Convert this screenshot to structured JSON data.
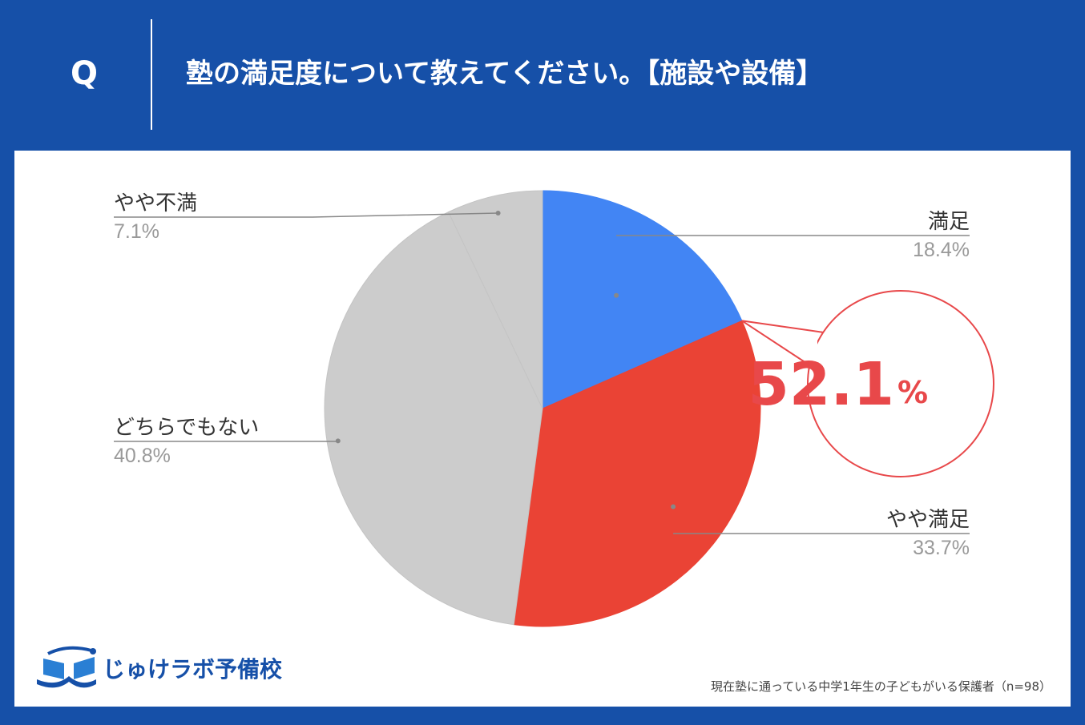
{
  "header": {
    "q_label": "Q",
    "question": "塾の満足度について教えてください。【施設や設備】"
  },
  "chart_data": {
    "type": "pie",
    "title": "",
    "slices": [
      {
        "label": "満足",
        "value": 18.4,
        "display": "18.4%",
        "color": "#4285f4",
        "label_side": "right"
      },
      {
        "label": "やや満足",
        "value": 33.7,
        "display": "33.7%",
        "color": "#ea4335",
        "label_side": "right"
      },
      {
        "label": "どちらでもない",
        "value": 40.8,
        "display": "40.8%",
        "color": "#cccccc",
        "label_side": "left"
      },
      {
        "label": "やや不満",
        "value": 7.1,
        "display": "7.1%",
        "color": "#cccccc",
        "label_side": "left"
      }
    ],
    "callout": {
      "value": "52.1",
      "unit": "%",
      "color": "#e8484a"
    }
  },
  "logo": {
    "text": "じゅけラボ予備校",
    "color": "#1650a8"
  },
  "footnote": "現在塾に通っている中学1年生の子どもがいる保護者（n=98）"
}
